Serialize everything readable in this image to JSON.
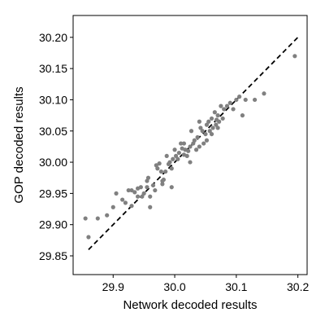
{
  "chart_data": {
    "type": "scatter",
    "xlabel": "Network decoded results",
    "ylabel": "GOP decoded results",
    "xlim": [
      29.835,
      30.215
    ],
    "ylim": [
      29.82,
      30.235
    ],
    "xticks": [
      29.9,
      30.0,
      30.1,
      30.2
    ],
    "xtick_labels": [
      "29.9",
      "30.0",
      "30.1",
      "30.2"
    ],
    "yticks": [
      29.85,
      29.9,
      29.95,
      30.0,
      30.05,
      30.1,
      30.15,
      30.2
    ],
    "ytick_labels": [
      "29.85",
      "29.90",
      "29.95",
      "30.00",
      "30.05",
      "30.10",
      "30.15",
      "30.20"
    ],
    "grid": false,
    "point_color": "#808080",
    "reference_line": {
      "style": "dashed",
      "color": "#000000",
      "x": [
        29.86,
        30.2
      ],
      "y": [
        29.86,
        30.2
      ]
    },
    "points": [
      [
        29.855,
        29.91
      ],
      [
        29.86,
        29.88
      ],
      [
        29.875,
        29.91
      ],
      [
        29.89,
        29.915
      ],
      [
        29.9,
        29.928
      ],
      [
        29.905,
        29.95
      ],
      [
        29.915,
        29.94
      ],
      [
        29.92,
        29.935
      ],
      [
        29.925,
        29.955
      ],
      [
        29.93,
        29.955
      ],
      [
        29.935,
        29.952
      ],
      [
        29.94,
        29.958
      ],
      [
        29.945,
        29.96
      ],
      [
        29.947,
        29.945
      ],
      [
        29.95,
        29.95
      ],
      [
        29.955,
        29.96
      ],
      [
        29.957,
        29.975
      ],
      [
        29.96,
        29.945
      ],
      [
        29.96,
        29.928
      ],
      [
        29.965,
        29.963
      ],
      [
        29.968,
        29.955
      ],
      [
        29.97,
        29.995
      ],
      [
        29.972,
        29.99
      ],
      [
        29.975,
        29.998
      ],
      [
        29.978,
        29.985
      ],
      [
        29.98,
        29.97
      ],
      [
        29.982,
        29.972
      ],
      [
        29.985,
        29.985
      ],
      [
        29.987,
        30.01
      ],
      [
        29.99,
        29.997
      ],
      [
        29.992,
        30.0
      ],
      [
        29.995,
        29.99
      ],
      [
        29.997,
        30.005
      ],
      [
        30.0,
        30.02
      ],
      [
        30.002,
        30.01
      ],
      [
        30.005,
        30.005
      ],
      [
        30.007,
        30.015
      ],
      [
        30.01,
        30.03
      ],
      [
        30.012,
        30.022
      ],
      [
        30.015,
        30.012
      ],
      [
        30.017,
        30.02
      ],
      [
        30.02,
        30.01
      ],
      [
        30.022,
        30.018
      ],
      [
        30.025,
        30.025
      ],
      [
        30.027,
        30.05
      ],
      [
        30.03,
        30.03
      ],
      [
        30.032,
        30.035
      ],
      [
        30.035,
        30.02
      ],
      [
        30.037,
        30.04
      ],
      [
        30.04,
        30.065
      ],
      [
        30.042,
        30.055
      ],
      [
        30.045,
        30.05
      ],
      [
        30.047,
        30.03
      ],
      [
        30.05,
        30.045
      ],
      [
        30.052,
        30.06
      ],
      [
        30.055,
        30.065
      ],
      [
        30.057,
        30.05
      ],
      [
        30.06,
        30.07
      ],
      [
        30.062,
        30.055
      ],
      [
        30.065,
        30.08
      ],
      [
        30.067,
        30.06
      ],
      [
        30.07,
        30.075
      ],
      [
        30.072,
        30.065
      ],
      [
        30.075,
        30.09
      ],
      [
        30.078,
        30.07
      ],
      [
        30.08,
        30.085
      ],
      [
        30.085,
        30.09
      ],
      [
        30.09,
        30.095
      ],
      [
        30.095,
        30.085
      ],
      [
        30.1,
        30.1
      ],
      [
        30.105,
        30.105
      ],
      [
        30.11,
        30.075
      ],
      [
        30.115,
        30.1
      ],
      [
        30.13,
        30.1
      ],
      [
        30.145,
        30.11
      ],
      [
        30.195,
        30.17
      ],
      [
        29.995,
        29.96
      ],
      [
        30.04,
        30.025
      ],
      [
        30.06,
        30.045
      ],
      [
        29.98,
        29.965
      ],
      [
        30.07,
        30.055
      ],
      [
        29.93,
        29.93
      ],
      [
        30.052,
        30.035
      ],
      [
        29.955,
        29.97
      ],
      [
        30.025,
        30.0
      ],
      [
        30.015,
        30.03
      ],
      [
        30.068,
        30.068
      ],
      [
        29.94,
        29.945
      ]
    ]
  }
}
